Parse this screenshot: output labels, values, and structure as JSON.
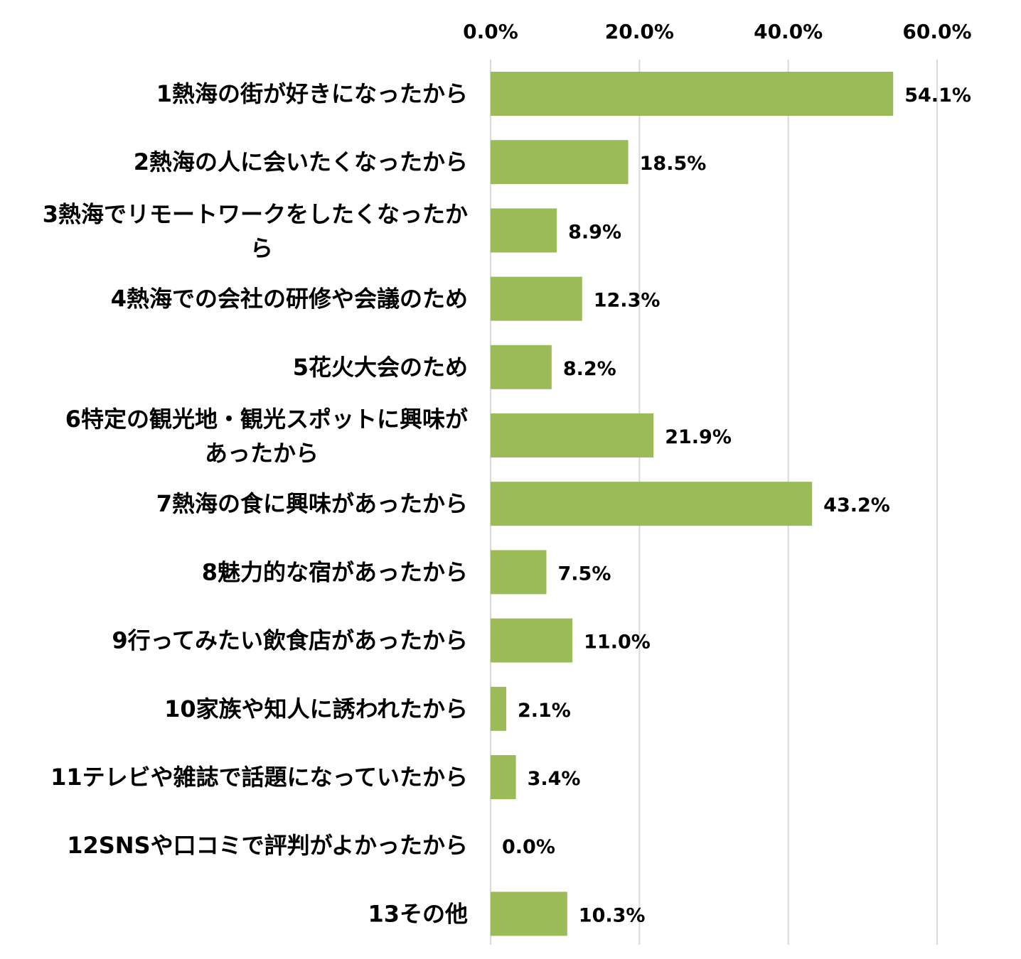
{
  "chart_data": {
    "type": "bar",
    "orientation": "horizontal",
    "categories": [
      [
        "1熱海の街が好きになったから"
      ],
      [
        "2熱海の人に会いたくなったから"
      ],
      [
        "3熱海でリモートワークをしたくなったか",
        "ら"
      ],
      [
        "4熱海での会社の研修や会議のため"
      ],
      [
        "5花火大会のため"
      ],
      [
        "6特定の観光地・観光スポットに興味が",
        "あったから"
      ],
      [
        "7熱海の食に興味があったから"
      ],
      [
        "8魅力的な宿があったから"
      ],
      [
        "9行ってみたい飲食店があったから"
      ],
      [
        "10家族や知人に誘われたから"
      ],
      [
        "11テレビや雑誌で話題になっていたから"
      ],
      [
        "12SNSや口コミで評判がよかったから"
      ],
      [
        "13その他"
      ]
    ],
    "values": [
      54.1,
      18.5,
      8.9,
      12.3,
      8.2,
      21.9,
      43.2,
      7.5,
      11.0,
      2.1,
      3.4,
      0.0,
      10.3
    ],
    "value_labels": [
      "54.1%",
      "18.5%",
      "8.9%",
      "12.3%",
      "8.2%",
      "21.9%",
      "43.2%",
      "7.5%",
      "11.0%",
      "2.1%",
      "3.4%",
      "0.0%",
      "10.3%"
    ],
    "x_ticks": [
      0,
      20,
      40,
      60
    ],
    "x_tick_labels": [
      "0.0%",
      "20.0%",
      "40.0%",
      "60.0%"
    ],
    "xlim": [
      0,
      60
    ],
    "axis_position": "top",
    "grid": true,
    "bar_color": "#9bbb59"
  }
}
